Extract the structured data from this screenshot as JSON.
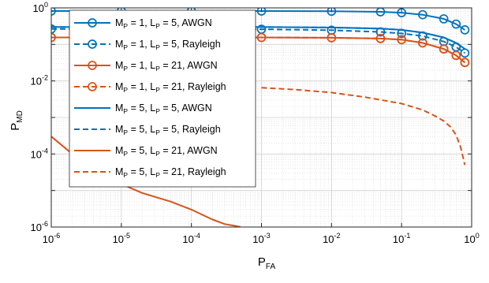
{
  "chart_data": {
    "type": "line",
    "xlabel": "P",
    "xlabel_sub": "FA",
    "ylabel": "P",
    "ylabel_sub": "MD",
    "xscale": "log",
    "yscale": "log",
    "xlim": [
      1e-06,
      1
    ],
    "ylim": [
      1e-06,
      1
    ],
    "xticks": [
      {
        "value": 1e-06,
        "base": "10",
        "exp": "-6"
      },
      {
        "value": 1e-05,
        "base": "10",
        "exp": "-5"
      },
      {
        "value": 0.0001,
        "base": "10",
        "exp": "-4"
      },
      {
        "value": 0.001,
        "base": "10",
        "exp": "-3"
      },
      {
        "value": 0.01,
        "base": "10",
        "exp": "-2"
      },
      {
        "value": 0.1,
        "base": "10",
        "exp": "-1"
      },
      {
        "value": 1,
        "base": "10",
        "exp": "0"
      }
    ],
    "yticks": [
      {
        "value": 1e-06,
        "base": "10",
        "exp": "-6"
      },
      {
        "value": 0.0001,
        "base": "10",
        "exp": "-4"
      },
      {
        "value": 0.01,
        "base": "10",
        "exp": "-2"
      },
      {
        "value": 1,
        "base": "10",
        "exp": "0"
      }
    ],
    "grid": true,
    "minor_grid": true,
    "legend_position": "top-left",
    "series": [
      {
        "name": "M_P = 1, L_P = 5, AWGN",
        "legend": [
          "M",
          "P",
          " = 1, L",
          "P",
          " = 5, AWGN"
        ],
        "color": "#0072BD",
        "linestyle": "solid",
        "marker": "circle",
        "x": [
          1e-06,
          1e-05,
          0.0001,
          0.001,
          0.01,
          0.05,
          0.1,
          0.2,
          0.4,
          0.6,
          0.8
        ],
        "y": [
          0.82,
          0.82,
          0.82,
          0.82,
          0.81,
          0.78,
          0.74,
          0.65,
          0.5,
          0.36,
          0.25
        ]
      },
      {
        "name": "M_P = 1, L_P = 5, Rayleigh",
        "legend": [
          "M",
          "P",
          " = 1, L",
          "P",
          " = 5, Rayleigh"
        ],
        "color": "#0072BD",
        "linestyle": "dashed",
        "marker": "circle",
        "x": [
          1e-06,
          1e-05,
          0.0001,
          0.001,
          0.01,
          0.05,
          0.1,
          0.2,
          0.4,
          0.6,
          0.8
        ],
        "y": [
          0.265,
          0.265,
          0.265,
          0.26,
          0.245,
          0.22,
          0.2,
          0.17,
          0.12,
          0.085,
          0.058
        ]
      },
      {
        "name": "M_P = 1, L_P = 21, AWGN",
        "legend": [
          "M",
          "P",
          " = 1, L",
          "P",
          " = 21, AWGN"
        ],
        "color": "#D95319",
        "linestyle": "solid",
        "marker": "circle",
        "x": [
          1e-06,
          1e-05,
          0.0001,
          0.001,
          0.01,
          0.05,
          0.1,
          0.2,
          0.4,
          0.6,
          0.8
        ],
        "y": [
          0.155,
          0.155,
          0.155,
          0.155,
          0.152,
          0.145,
          0.135,
          0.11,
          0.075,
          0.05,
          0.032
        ]
      },
      {
        "name": "M_P = 1, L_P = 21, Rayleigh",
        "legend": [
          "M",
          "P",
          " = 1, L",
          "P",
          " = 21, Rayleigh"
        ],
        "color": "#D95319",
        "linestyle": "dashed",
        "marker": "circle",
        "x": [
          1e-06,
          1e-05,
          0.0001,
          0.001,
          0.01,
          0.05,
          0.1,
          0.2,
          0.4,
          0.6,
          0.8
        ],
        "y": [
          0.155,
          0.155,
          0.155,
          0.155,
          0.152,
          0.145,
          0.135,
          0.11,
          0.075,
          0.05,
          0.032
        ]
      },
      {
        "name": "M_P = 5, L_P = 5, AWGN",
        "legend": [
          "M",
          "P",
          " = 5, L",
          "P",
          " = 5, AWGN"
        ],
        "color": "#0072BD",
        "linestyle": "solid",
        "marker": "none",
        "x": [
          1e-06,
          1e-05,
          0.0001,
          0.001,
          0.01,
          0.05,
          0.1,
          0.2,
          0.4,
          0.6,
          0.8
        ],
        "y": [
          0.3,
          0.3,
          0.3,
          0.3,
          0.29,
          0.27,
          0.25,
          0.21,
          0.155,
          0.11,
          0.075
        ]
      },
      {
        "name": "M_P = 5, L_P = 5, Rayleigh",
        "legend": [
          "M",
          "P",
          " = 5, L",
          "P",
          " = 5, Rayleigh"
        ],
        "color": "#0072BD",
        "linestyle": "dashed",
        "marker": "none",
        "x": [
          1e-06,
          1e-05,
          0.0001,
          0.001,
          0.01,
          0.05,
          0.1,
          0.2,
          0.4,
          0.6,
          0.8
        ],
        "y": [
          0.3,
          0.3,
          0.3,
          0.3,
          0.29,
          0.27,
          0.25,
          0.21,
          0.155,
          0.11,
          0.075
        ]
      },
      {
        "name": "M_P = 5, L_P = 21, AWGN",
        "legend": [
          "M",
          "P",
          " = 5, L",
          "P",
          " = 21, AWGN"
        ],
        "color": "#D95319",
        "linestyle": "solid",
        "marker": "none",
        "x": [
          1e-06,
          2e-06,
          5e-06,
          1e-05,
          2e-05,
          5e-05,
          0.0001,
          0.0002,
          0.0003,
          0.0004,
          0.0005
        ],
        "y": [
          0.0003,
          0.0001,
          3e-05,
          1.5e-05,
          8.5e-06,
          5e-06,
          3e-06,
          1.6e-06,
          1.2e-06,
          1.1e-06,
          1e-06
        ]
      },
      {
        "name": "M_P = 5, L_P = 21, Rayleigh",
        "legend": [
          "M",
          "P",
          " = 5, L",
          "P",
          " = 21, Rayleigh"
        ],
        "color": "#D95319",
        "linestyle": "dashed",
        "marker": "none",
        "x": [
          0.001,
          0.003,
          0.01,
          0.03,
          0.1,
          0.2,
          0.3,
          0.4,
          0.5,
          0.6,
          0.7,
          0.8
        ],
        "y": [
          0.0065,
          0.0058,
          0.0048,
          0.0036,
          0.0024,
          0.0016,
          0.0011,
          0.0008,
          0.00055,
          0.00033,
          0.00015,
          5e-05
        ]
      }
    ]
  }
}
